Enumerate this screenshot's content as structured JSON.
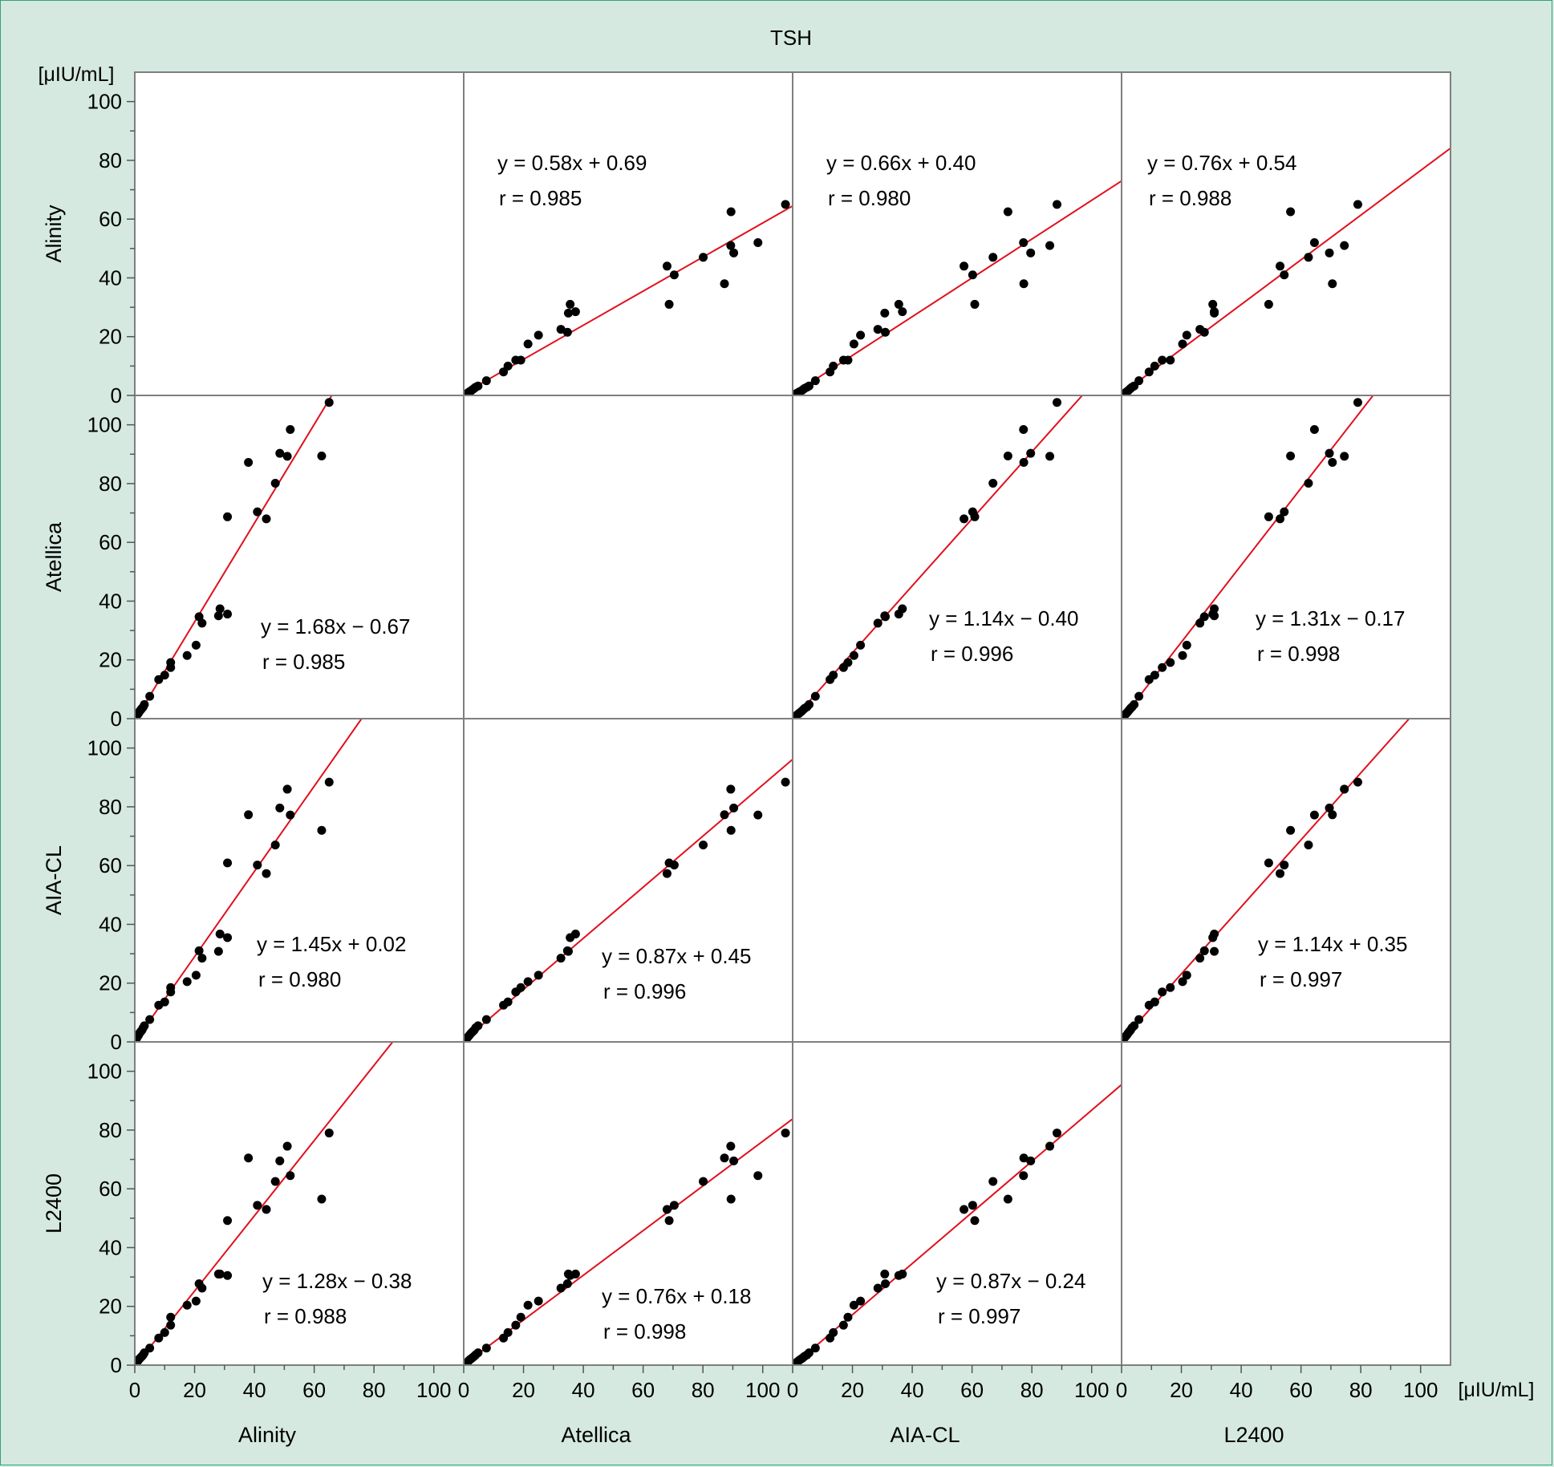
{
  "chart_data": {
    "type": "scatter",
    "title": "TSH",
    "unit_y": "[μIU/mL]",
    "unit_x": "[μIU/mL]",
    "variables": [
      "Alinity",
      "Atellica",
      "AIA-CL",
      "L2400"
    ],
    "axis": {
      "min": 0,
      "max": 110,
      "ticks": [
        0,
        20,
        40,
        60,
        80,
        100
      ],
      "grid": false
    },
    "samples": {
      "Alinity": [
        0.3,
        0.5,
        0.7,
        1.0,
        1.3,
        1.6,
        2.0,
        2.4,
        2.8,
        3.2,
        5.0,
        8.0,
        10.0,
        12.0,
        12.0,
        17.5,
        20.5,
        21.5,
        22.5,
        28.0,
        28.5,
        31.0,
        44.0,
        41.0,
        51.0,
        31.0,
        47.0,
        38.0,
        48.5,
        52.0,
        65.0,
        62.5
      ],
      "Atellica": [
        0.5,
        0.8,
        1.2,
        1.6,
        2.0,
        2.5,
        3.0,
        3.5,
        4.0,
        4.8,
        7.6,
        13.3,
        14.8,
        17.4,
        19.1,
        21.5,
        25.0,
        34.7,
        32.5,
        35.0,
        37.4,
        35.6,
        68.0,
        70.4,
        89.3,
        68.7,
        80.1,
        87.2,
        90.3,
        98.4,
        107.6,
        89.4
      ],
      "AIA-CL": [
        0.7,
        1.0,
        1.4,
        1.9,
        2.4,
        3.0,
        3.5,
        4.0,
        4.8,
        5.5,
        7.6,
        12.5,
        13.6,
        17.0,
        18.5,
        20.5,
        22.7,
        31.0,
        28.5,
        30.8,
        36.7,
        35.5,
        57.3,
        60.2,
        86.0,
        60.9,
        67.0,
        77.3,
        79.6,
        77.2,
        88.4,
        72.0
      ],
      "L2400": [
        0.3,
        0.6,
        1.0,
        1.4,
        1.8,
        2.2,
        2.6,
        3.0,
        3.5,
        4.2,
        5.8,
        9.2,
        11.1,
        13.6,
        16.3,
        20.4,
        21.8,
        27.7,
        26.2,
        31.0,
        31.0,
        30.5,
        53.0,
        54.4,
        74.5,
        49.2,
        62.5,
        70.5,
        69.5,
        64.5,
        79.0,
        56.5
      ]
    },
    "regressions": [
      {
        "y": "Alinity",
        "x": "Atellica",
        "equation": "y = 0.58x + 0.69",
        "r": "r = 0.985",
        "slope": 0.58,
        "intercept": 0.69
      },
      {
        "y": "Alinity",
        "x": "AIA-CL",
        "equation": "y = 0.66x + 0.40",
        "r": "r = 0.980",
        "slope": 0.66,
        "intercept": 0.4
      },
      {
        "y": "Alinity",
        "x": "L2400",
        "equation": "y = 0.76x + 0.54",
        "r": "r = 0.988",
        "slope": 0.76,
        "intercept": 0.54
      },
      {
        "y": "Atellica",
        "x": "Alinity",
        "equation": "y = 1.68x − 0.67",
        "r": "r = 0.985",
        "slope": 1.68,
        "intercept": -0.67
      },
      {
        "y": "Atellica",
        "x": "AIA-CL",
        "equation": "y = 1.14x − 0.40",
        "r": "r = 0.996",
        "slope": 1.14,
        "intercept": -0.4
      },
      {
        "y": "Atellica",
        "x": "L2400",
        "equation": "y = 1.31x − 0.17",
        "r": "r = 0.998",
        "slope": 1.31,
        "intercept": -0.17
      },
      {
        "y": "AIA-CL",
        "x": "Alinity",
        "equation": "y = 1.45x + 0.02",
        "r": "r = 0.980",
        "slope": 1.45,
        "intercept": 0.02
      },
      {
        "y": "AIA-CL",
        "x": "Atellica",
        "equation": "y = 0.87x + 0.45",
        "r": "r = 0.996",
        "slope": 0.87,
        "intercept": 0.45
      },
      {
        "y": "AIA-CL",
        "x": "L2400",
        "equation": "y = 1.14x + 0.35",
        "r": "r = 0.997",
        "slope": 1.14,
        "intercept": 0.35
      },
      {
        "y": "L2400",
        "x": "Alinity",
        "equation": "y = 1.28x − 0.38",
        "r": "r = 0.988",
        "slope": 1.28,
        "intercept": -0.38
      },
      {
        "y": "L2400",
        "x": "Atellica",
        "equation": "y = 0.76x + 0.18",
        "r": "r = 0.998",
        "slope": 0.76,
        "intercept": 0.18
      },
      {
        "y": "L2400",
        "x": "AIA-CL",
        "equation": "y = 0.87x − 0.24",
        "r": "r = 0.997",
        "slope": 0.87,
        "intercept": -0.24
      }
    ],
    "colors": {
      "points": "#000000",
      "regression_line": "#e0101e",
      "background": "#d5e9e1",
      "panel": "#ffffff",
      "frame": "#2fa37a"
    }
  }
}
